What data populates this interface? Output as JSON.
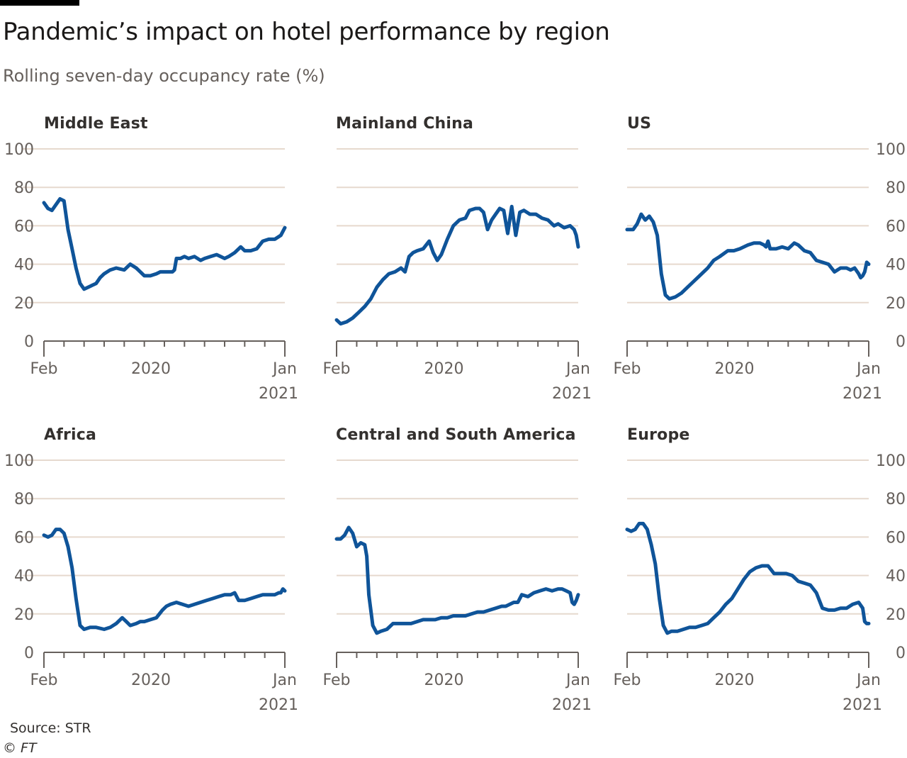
{
  "header": {
    "title": "Pandemic’s impact on hotel performance by region",
    "subtitle": "Rolling seven-day occupancy rate (%)"
  },
  "footer": {
    "source": "Source: STR",
    "copyright": "© FT"
  },
  "colors": {
    "line": "#0f5499",
    "gridline": "#e6d9ce",
    "axis": "#66605c",
    "label": "#33302e"
  },
  "chart_data": [
    {
      "type": "line",
      "title": "Middle East",
      "ylim": [
        0,
        100
      ],
      "yticks": [
        "0",
        "20",
        "40",
        "60",
        "80",
        "100"
      ],
      "xlim": [
        1,
        13
      ],
      "xticks": [
        {
          "x": 1,
          "label": "Feb"
        },
        {
          "x": 6.33,
          "label": "2020"
        },
        {
          "x": 13,
          "label": "Jan",
          "sublabel": "2021"
        }
      ],
      "grid": true,
      "x": [
        1,
        1.2,
        1.4,
        1.6,
        1.8,
        2.0,
        2.2,
        2.4,
        2.6,
        2.8,
        3.0,
        3.2,
        3.4,
        3.6,
        3.8,
        4.0,
        4.3,
        4.6,
        5.0,
        5.3,
        5.6,
        5.8,
        6.0,
        6.3,
        6.6,
        6.8,
        7.0,
        7.2,
        7.4,
        7.5,
        7.6,
        7.8,
        8.0,
        8.2,
        8.5,
        8.8,
        9.0,
        9.3,
        9.6,
        9.8,
        10.0,
        10.2,
        10.5,
        10.8,
        11.0,
        11.3,
        11.6,
        11.9,
        12.2,
        12.5,
        12.8,
        13.0
      ],
      "values": [
        72,
        69,
        68,
        71,
        74,
        73,
        58,
        48,
        38,
        30,
        27,
        28,
        29,
        30,
        33,
        35,
        37,
        38,
        37,
        40,
        38,
        36,
        34,
        34,
        35,
        36,
        36,
        36,
        36,
        37,
        43,
        43,
        44,
        43,
        44,
        42,
        43,
        44,
        45,
        44,
        43,
        44,
        46,
        49,
        47,
        47,
        48,
        52,
        53,
        53,
        55,
        59
      ]
    },
    {
      "type": "line",
      "title": "Mainland China",
      "ylim": [
        0,
        100
      ],
      "yticks": [
        "0",
        "20",
        "40",
        "60",
        "80",
        "100"
      ],
      "xlim": [
        1,
        13
      ],
      "xticks": [
        {
          "x": 1,
          "label": "Feb"
        },
        {
          "x": 6.33,
          "label": "2020"
        },
        {
          "x": 13,
          "label": "Jan",
          "sublabel": "2021"
        }
      ],
      "grid": true,
      "x": [
        1,
        1.2,
        1.5,
        1.8,
        2.1,
        2.4,
        2.7,
        3.0,
        3.3,
        3.6,
        3.9,
        4.2,
        4.4,
        4.6,
        4.8,
        5.0,
        5.3,
        5.6,
        5.8,
        6.0,
        6.2,
        6.5,
        6.8,
        7.1,
        7.4,
        7.6,
        7.9,
        8.1,
        8.3,
        8.5,
        8.7,
        8.9,
        9.1,
        9.3,
        9.5,
        9.7,
        9.9,
        10.1,
        10.3,
        10.6,
        10.9,
        11.2,
        11.5,
        11.8,
        12.0,
        12.3,
        12.6,
        12.8,
        12.9,
        13.0
      ],
      "values": [
        11,
        9,
        10,
        12,
        15,
        18,
        22,
        28,
        32,
        35,
        36,
        38,
        36,
        44,
        46,
        47,
        48,
        52,
        46,
        42,
        45,
        53,
        60,
        63,
        64,
        68,
        69,
        69,
        67,
        58,
        63,
        66,
        69,
        68,
        56,
        70,
        55,
        67,
        68,
        66,
        66,
        64,
        63,
        60,
        61,
        59,
        60,
        58,
        55,
        49
      ]
    },
    {
      "type": "line",
      "title": "US",
      "ylim": [
        0,
        100
      ],
      "yticks": [
        "0",
        "20",
        "40",
        "60",
        "80",
        "100"
      ],
      "xlim": [
        1,
        13
      ],
      "xticks": [
        {
          "x": 1,
          "label": "Feb"
        },
        {
          "x": 6.33,
          "label": "2020"
        },
        {
          "x": 13,
          "label": "Jan",
          "sublabel": "2021"
        }
      ],
      "grid": true,
      "x": [
        1,
        1.3,
        1.5,
        1.7,
        1.9,
        2.1,
        2.3,
        2.5,
        2.7,
        2.9,
        3.1,
        3.4,
        3.7,
        4.0,
        4.3,
        4.6,
        5.0,
        5.3,
        5.6,
        6.0,
        6.3,
        6.6,
        7.0,
        7.3,
        7.6,
        7.8,
        7.9,
        8.0,
        8.1,
        8.4,
        8.7,
        9.0,
        9.3,
        9.5,
        9.8,
        10.1,
        10.4,
        10.7,
        11.0,
        11.3,
        11.6,
        11.9,
        12.1,
        12.3,
        12.5,
        12.6,
        12.7,
        12.8,
        12.9,
        13.0
      ],
      "values": [
        58,
        58,
        61,
        66,
        63,
        65,
        62,
        55,
        35,
        24,
        22,
        23,
        25,
        28,
        31,
        34,
        38,
        42,
        44,
        47,
        47,
        48,
        50,
        51,
        51,
        50,
        49,
        52,
        48,
        48,
        49,
        48,
        51,
        50,
        47,
        46,
        42,
        41,
        40,
        36,
        38,
        38,
        37,
        38,
        35,
        33,
        34,
        36,
        41,
        40
      ]
    },
    {
      "type": "line",
      "title": "Africa",
      "ylim": [
        0,
        100
      ],
      "yticks": [
        "0",
        "20",
        "40",
        "60",
        "80",
        "100"
      ],
      "xlim": [
        1,
        13
      ],
      "xticks": [
        {
          "x": 1,
          "label": "Feb"
        },
        {
          "x": 6.33,
          "label": "2020"
        },
        {
          "x": 13,
          "label": "Jan",
          "sublabel": "2021"
        }
      ],
      "grid": true,
      "x": [
        1,
        1.2,
        1.4,
        1.6,
        1.8,
        2.0,
        2.2,
        2.4,
        2.6,
        2.8,
        3.0,
        3.3,
        3.6,
        4.0,
        4.3,
        4.6,
        4.9,
        5.1,
        5.3,
        5.6,
        5.8,
        6.0,
        6.3,
        6.6,
        6.9,
        7.1,
        7.3,
        7.6,
        7.9,
        8.2,
        8.5,
        8.8,
        9.1,
        9.4,
        9.7,
        10.0,
        10.3,
        10.5,
        10.7,
        11.0,
        11.3,
        11.6,
        11.9,
        12.2,
        12.5,
        12.7,
        12.8,
        12.9,
        13.0
      ],
      "values": [
        61,
        60,
        61,
        64,
        64,
        62,
        55,
        44,
        28,
        14,
        12,
        13,
        13,
        12,
        13,
        15,
        18,
        16,
        14,
        15,
        16,
        16,
        17,
        18,
        22,
        24,
        25,
        26,
        25,
        24,
        25,
        26,
        27,
        28,
        29,
        30,
        30,
        31,
        27,
        27,
        28,
        29,
        30,
        30,
        30,
        31,
        31,
        33,
        32
      ]
    },
    {
      "type": "line",
      "title": "Central and South America",
      "ylim": [
        0,
        100
      ],
      "yticks": [
        "0",
        "20",
        "40",
        "60",
        "80",
        "100"
      ],
      "xlim": [
        1,
        13
      ],
      "xticks": [
        {
          "x": 1,
          "label": "Feb"
        },
        {
          "x": 6.33,
          "label": "2020"
        },
        {
          "x": 13,
          "label": "Jan",
          "sublabel": "2021"
        }
      ],
      "grid": true,
      "x": [
        1,
        1.2,
        1.4,
        1.6,
        1.8,
        2.0,
        2.2,
        2.4,
        2.5,
        2.6,
        2.8,
        3.0,
        3.2,
        3.5,
        3.8,
        4.1,
        4.4,
        4.7,
        5.0,
        5.3,
        5.6,
        5.9,
        6.2,
        6.5,
        6.8,
        7.1,
        7.4,
        7.7,
        8.0,
        8.3,
        8.6,
        8.9,
        9.2,
        9.4,
        9.6,
        9.8,
        10.0,
        10.2,
        10.5,
        10.8,
        11.1,
        11.4,
        11.7,
        12.0,
        12.2,
        12.4,
        12.6,
        12.7,
        12.8,
        12.9,
        13.0
      ],
      "values": [
        59,
        59,
        61,
        65,
        62,
        55,
        57,
        56,
        50,
        30,
        14,
        10,
        11,
        12,
        15,
        15,
        15,
        15,
        16,
        17,
        17,
        17,
        18,
        18,
        19,
        19,
        19,
        20,
        21,
        21,
        22,
        23,
        24,
        24,
        25,
        26,
        26,
        30,
        29,
        31,
        32,
        33,
        32,
        33,
        33,
        32,
        31,
        26,
        25,
        27,
        30
      ]
    },
    {
      "type": "line",
      "title": "Europe",
      "ylim": [
        0,
        100
      ],
      "yticks": [
        "0",
        "20",
        "40",
        "60",
        "80",
        "100"
      ],
      "xlim": [
        1,
        13
      ],
      "xticks": [
        {
          "x": 1,
          "label": "Feb"
        },
        {
          "x": 6.33,
          "label": "2020"
        },
        {
          "x": 13,
          "label": "Jan",
          "sublabel": "2021"
        }
      ],
      "grid": true,
      "x": [
        1,
        1.2,
        1.4,
        1.6,
        1.8,
        2.0,
        2.2,
        2.4,
        2.6,
        2.8,
        3.0,
        3.2,
        3.5,
        3.8,
        4.1,
        4.4,
        4.7,
        5.0,
        5.3,
        5.6,
        5.9,
        6.2,
        6.5,
        6.8,
        7.1,
        7.4,
        7.7,
        8.0,
        8.3,
        8.6,
        8.9,
        9.2,
        9.5,
        9.8,
        10.1,
        10.4,
        10.7,
        11.0,
        11.3,
        11.6,
        11.9,
        12.2,
        12.5,
        12.7,
        12.8,
        12.9,
        13.0
      ],
      "values": [
        64,
        63,
        64,
        67,
        67,
        64,
        56,
        46,
        28,
        14,
        10,
        11,
        11,
        12,
        13,
        13,
        14,
        15,
        18,
        21,
        25,
        28,
        33,
        38,
        42,
        44,
        45,
        45,
        41,
        41,
        41,
        40,
        37,
        36,
        35,
        31,
        23,
        22,
        22,
        23,
        23,
        25,
        26,
        23,
        16,
        15,
        15
      ]
    }
  ]
}
